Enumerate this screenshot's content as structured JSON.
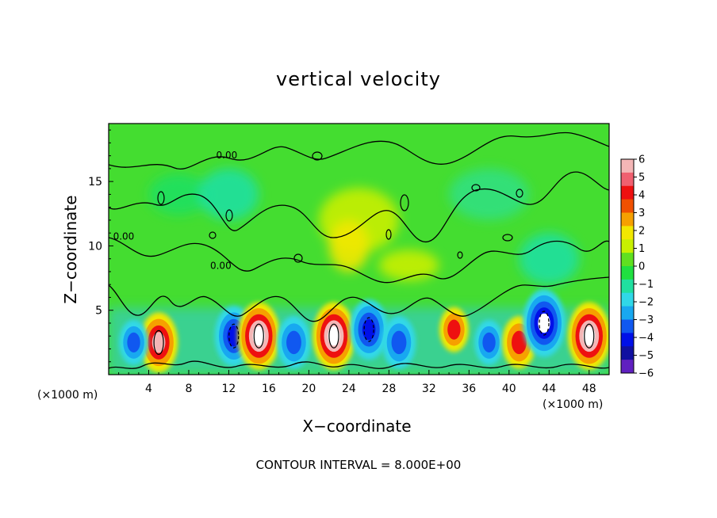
{
  "chart_data": {
    "type": "heatmap",
    "title": "vertical velocity",
    "xlabel": "X−coordinate",
    "ylabel": "Z−coordinate",
    "x_unit_left": "(×1000 m)",
    "x_unit_right": "(×1000 m)",
    "footer": "CONTOUR INTERVAL = 8.000E+00",
    "xlim": [
      0,
      50
    ],
    "ylim": [
      0,
      19.5
    ],
    "x_ticks": [
      4,
      8,
      12,
      16,
      20,
      24,
      28,
      32,
      36,
      40,
      44,
      48
    ],
    "y_ticks": [
      5,
      10,
      15
    ],
    "colorbar": {
      "range": [
        -6,
        6
      ],
      "tick_labels": [
        "6",
        "5",
        "4",
        "3",
        "2",
        "1",
        "0",
        "−1",
        "−2",
        "−3",
        "−4",
        "−5",
        "−6"
      ],
      "tick_values": [
        6,
        5,
        4,
        3,
        2,
        1,
        0,
        -1,
        -2,
        -3,
        -4,
        -5,
        -6
      ],
      "colors": [
        "#f4b6b6",
        "#f06070",
        "#ee1010",
        "#f05000",
        "#f6a000",
        "#f2e800",
        "#c8f000",
        "#60e020",
        "#20e040",
        "#20e0a0",
        "#30d8e8",
        "#18a8f0",
        "#1058f0",
        "#0010e8",
        "#1010a0",
        "#6020c0"
      ]
    },
    "contour_labels": [
      {
        "x": 1.5,
        "z": 10.5,
        "text": "0.00"
      },
      {
        "x": 11.2,
        "z": 8.2,
        "text": "0.00"
      },
      {
        "x": 11.8,
        "z": 16.8,
        "text": "0.00"
      }
    ],
    "features": [
      {
        "kind": "updraft",
        "x": 5.0,
        "z": 2.5,
        "amplitude": 5
      },
      {
        "kind": "downdraft",
        "x": 2.5,
        "z": 2.5,
        "amplitude": -3
      },
      {
        "kind": "downdraft",
        "x": 12.5,
        "z": 3.0,
        "amplitude": -5
      },
      {
        "kind": "updraft",
        "x": 15.0,
        "z": 3.0,
        "amplitude": 6
      },
      {
        "kind": "downdraft",
        "x": 18.5,
        "z": 2.5,
        "amplitude": -4
      },
      {
        "kind": "updraft",
        "x": 22.5,
        "z": 3.0,
        "amplitude": 6
      },
      {
        "kind": "downdraft",
        "x": 26.0,
        "z": 3.5,
        "amplitude": -5
      },
      {
        "kind": "downdraft",
        "x": 29.0,
        "z": 2.5,
        "amplitude": -4
      },
      {
        "kind": "updraft",
        "x": 34.5,
        "z": 3.5,
        "amplitude": 3
      },
      {
        "kind": "downdraft",
        "x": 38.0,
        "z": 2.5,
        "amplitude": -3
      },
      {
        "kind": "updraft",
        "x": 41.0,
        "z": 2.5,
        "amplitude": 4
      },
      {
        "kind": "downdraft",
        "x": 43.5,
        "z": 4.0,
        "amplitude": -6
      },
      {
        "kind": "updraft",
        "x": 48.0,
        "z": 3.0,
        "amplitude": 6
      }
    ]
  }
}
